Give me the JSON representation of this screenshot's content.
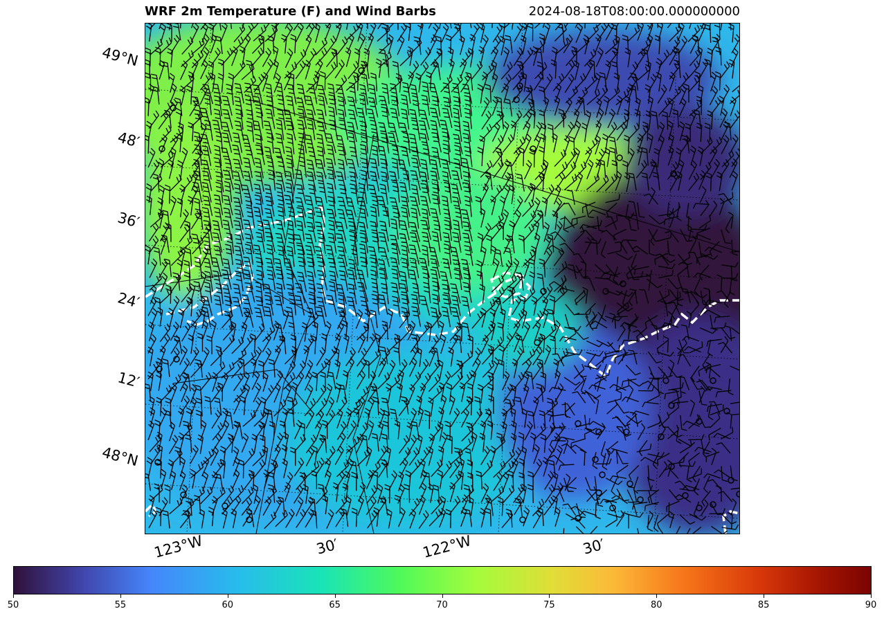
{
  "header": {
    "title": "WRF 2m Temperature (F) and Wind Barbs",
    "valid_time": "2024-08-18T08:00:00.000000000"
  },
  "map": {
    "latitude_labels": [
      "49°N",
      "48′",
      "36′",
      "24′",
      "12′",
      "48°N"
    ],
    "longitude_labels": [
      "123°W",
      "30′",
      "122°W",
      "30′"
    ],
    "coastline_style": "white-dashed",
    "gridlines": "dotted"
  },
  "colorbar": {
    "colormap": "turbo",
    "ticks": [
      "50",
      "55",
      "60",
      "65",
      "70",
      "75",
      "80",
      "85",
      "90"
    ],
    "min": 50,
    "max": 90
  },
  "colors": {
    "cold": "#30123b",
    "cool": "#4686fb",
    "mild": "#1ae4b6",
    "warm": "#a4fc3c",
    "hot": "#7a0403",
    "coastline": "#ffffff",
    "barbs": "#000000"
  }
}
